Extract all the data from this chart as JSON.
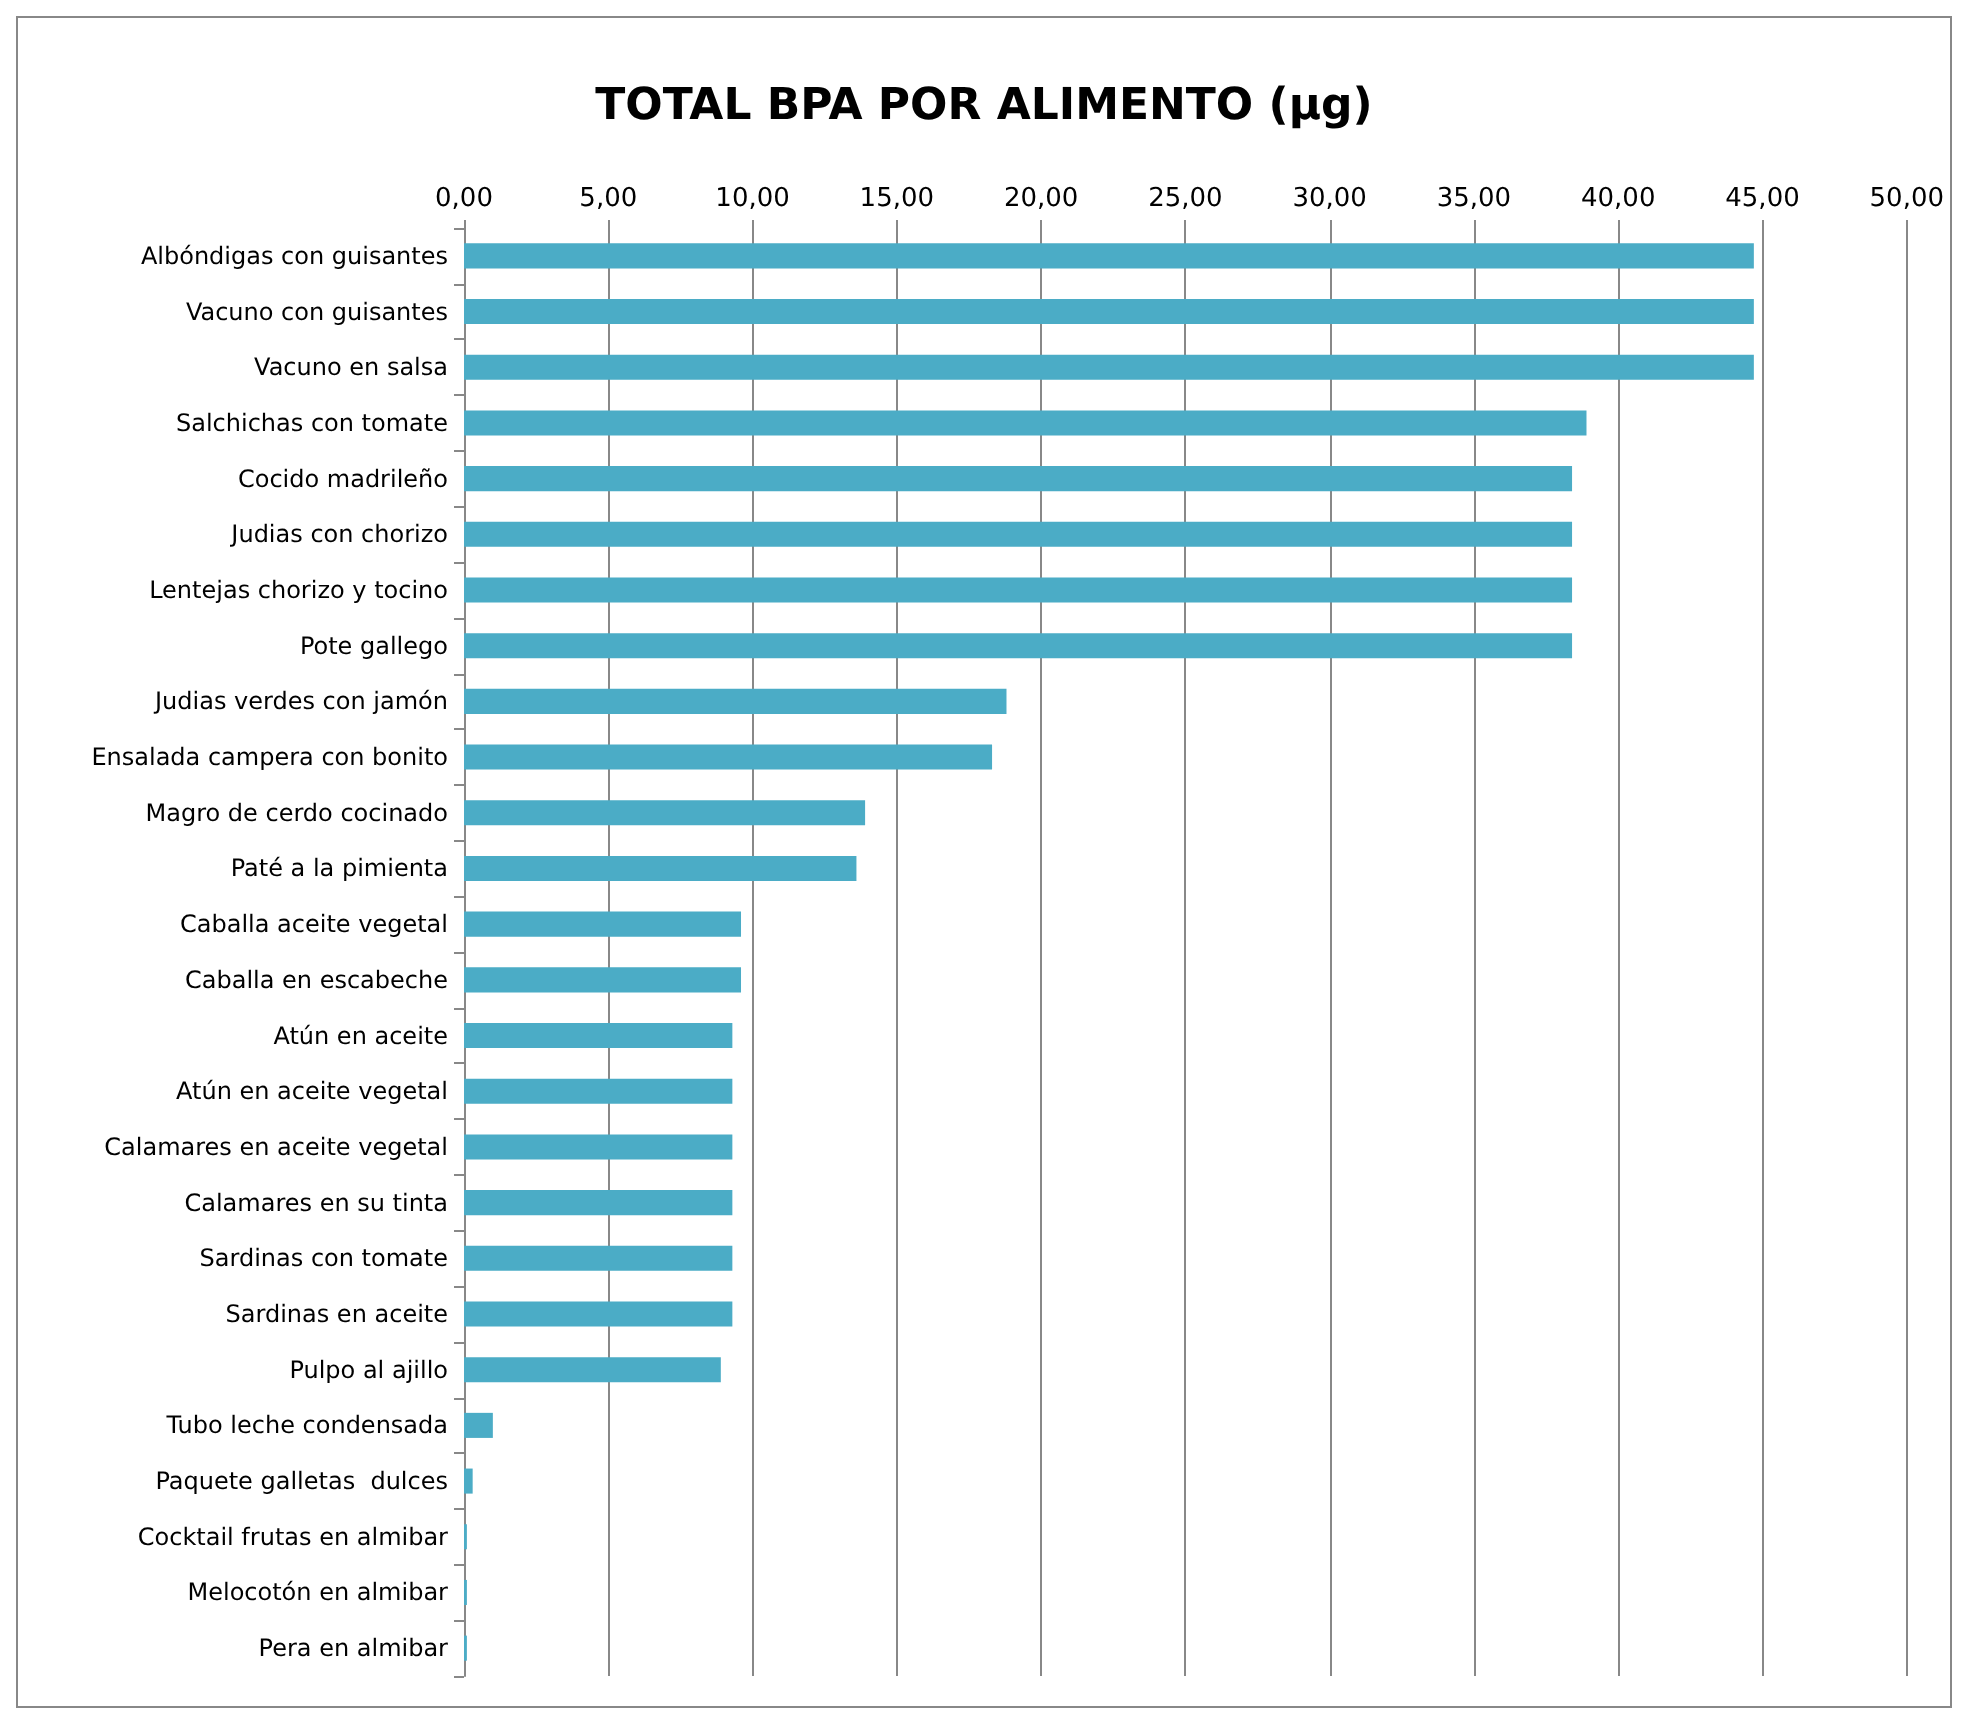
{
  "chart_data": {
    "type": "bar",
    "orientation": "horizontal",
    "title": "TOTAL BPA POR ALIMENTO (µg)",
    "categories": [
      "Albóndigas con guisantes",
      "Vacuno con guisantes",
      "Vacuno en salsa",
      "Salchichas con tomate",
      "Cocido madrileño",
      "Judias con chorizo",
      "Lentejas chorizo y tocino",
      "Pote gallego",
      "Judias verdes con jamón",
      "Ensalada campera con bonito",
      "Magro de cerdo cocinado",
      "Paté a la pimienta",
      "Caballa aceite vegetal",
      "Caballa en escabeche",
      "Atún en aceite",
      "Atún en aceite vegetal",
      "Calamares en aceite vegetal",
      "Calamares en su tinta",
      "Sardinas con tomate",
      "Sardinas en aceite",
      "Pulpo al ajillo",
      "Tubo leche condensada",
      "Paquete galletas  dulces",
      "Cocktail frutas en almibar",
      "Melocotón en almibar",
      "Pera en almibar"
    ],
    "values": [
      44.7,
      44.7,
      44.7,
      38.9,
      38.4,
      38.4,
      38.4,
      38.4,
      18.8,
      18.3,
      13.9,
      13.6,
      9.6,
      9.6,
      9.3,
      9.3,
      9.3,
      9.3,
      9.3,
      9.3,
      8.9,
      1.0,
      0.3,
      0.1,
      0.1,
      0.1
    ],
    "color": "#4bacc6",
    "xlim": [
      0,
      50
    ],
    "xticks": [
      {
        "value": 0,
        "label": "0,00"
      },
      {
        "value": 5,
        "label": "5,00"
      },
      {
        "value": 10,
        "label": "10,00"
      },
      {
        "value": 15,
        "label": "15,00"
      },
      {
        "value": 20,
        "label": "20,00"
      },
      {
        "value": 25,
        "label": "25,00"
      },
      {
        "value": 30,
        "label": "30,00"
      },
      {
        "value": 35,
        "label": "35,00"
      },
      {
        "value": 40,
        "label": "40,00"
      },
      {
        "value": 45,
        "label": "45,00"
      },
      {
        "value": 50,
        "label": "50,00"
      }
    ],
    "grid": "x"
  }
}
